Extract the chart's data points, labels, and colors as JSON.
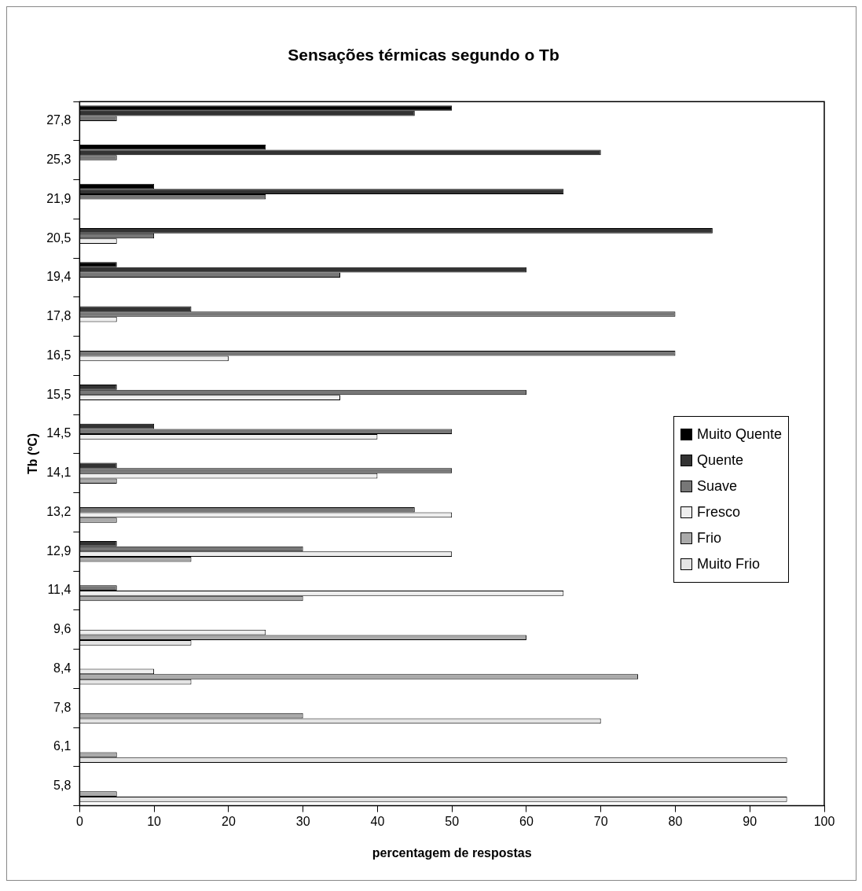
{
  "chart_data": {
    "type": "bar",
    "orientation": "horizontal",
    "title": "Sensações térmicas segundo o Tb",
    "xlabel": "percentagem de respostas",
    "ylabel": "Tb (ºC)",
    "categories": [
      "27,8",
      "25,3",
      "21,9",
      "20,5",
      "19,4",
      "17,8",
      "16,5",
      "15,5",
      "14,5",
      "14,1",
      "13,2",
      "12,9",
      "11,4",
      "9,6",
      "8,4",
      "7,8",
      "6,1",
      "5,8"
    ],
    "series": [
      {
        "name": "Muito Quente",
        "color": "#000000",
        "values": [
          50,
          25,
          10,
          null,
          5,
          null,
          null,
          null,
          null,
          null,
          null,
          null,
          null,
          null,
          null,
          null,
          null,
          null
        ]
      },
      {
        "name": "Quente",
        "color": "#333333",
        "values": [
          45,
          70,
          65,
          85,
          60,
          15,
          null,
          5,
          10,
          5,
          null,
          5,
          null,
          null,
          null,
          null,
          null,
          null
        ]
      },
      {
        "name": "Suave",
        "color": "#777777",
        "values": [
          5,
          5,
          25,
          10,
          35,
          80,
          80,
          60,
          50,
          50,
          45,
          30,
          5,
          null,
          null,
          null,
          null,
          null
        ]
      },
      {
        "name": "Fresco",
        "color": "#eeeeee",
        "values": [
          null,
          null,
          null,
          5,
          null,
          5,
          20,
          35,
          40,
          40,
          50,
          50,
          65,
          25,
          10,
          null,
          null,
          null
        ]
      },
      {
        "name": "Frio",
        "color": "#aaaaaa",
        "values": [
          null,
          null,
          null,
          null,
          null,
          null,
          null,
          null,
          null,
          5,
          5,
          15,
          30,
          60,
          75,
          30,
          5,
          5
        ]
      },
      {
        "name": "Muito Frio",
        "color": "#e4e4e4",
        "values": [
          null,
          null,
          null,
          null,
          null,
          null,
          null,
          null,
          null,
          null,
          null,
          null,
          null,
          15,
          15,
          70,
          95,
          95
        ]
      }
    ],
    "xlim": [
      0,
      100
    ],
    "xticks": [
      0,
      10,
      20,
      30,
      40,
      50,
      60,
      70,
      80,
      90,
      100
    ],
    "legend": "right"
  }
}
